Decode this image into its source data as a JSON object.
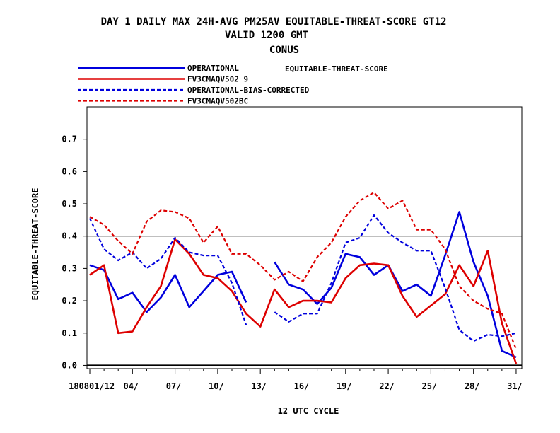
{
  "chart_data": {
    "type": "line",
    "title_lines": [
      "DAY 1 DAILY MAX   24H-AVG PM25AV EQUITABLE-THREAT-SCORE GT12",
      "VALID 1200 GMT",
      "CONUS"
    ],
    "legend_header": "EQUITABLE-THREAT-SCORE",
    "xlabel": "12 UTC CYCLE",
    "ylabel": "EQUITABLE-THREAT-SCORE",
    "x_start_label": "1808",
    "x_tick_labels": [
      {
        "day": 1,
        "label": "01/12"
      },
      {
        "day": 4,
        "label": "04/"
      },
      {
        "day": 7,
        "label": "07/"
      },
      {
        "day": 10,
        "label": "10/"
      },
      {
        "day": 13,
        "label": "13/"
      },
      {
        "day": 16,
        "label": "16/"
      },
      {
        "day": 19,
        "label": "19/"
      },
      {
        "day": 22,
        "label": "22/"
      },
      {
        "day": 25,
        "label": "25/"
      },
      {
        "day": 28,
        "label": "28/"
      },
      {
        "day": 31,
        "label": "31/"
      }
    ],
    "xlim": [
      0.8,
      31.4
    ],
    "ylim": [
      -0.01,
      0.8
    ],
    "y_ticks": [
      0.0,
      0.1,
      0.2,
      0.3,
      0.4,
      0.5,
      0.6,
      0.7
    ],
    "y_tick_labels": [
      "0.0",
      "0.1",
      "0.2",
      "0.3",
      "0.4",
      "0.5",
      "0.6",
      "0.7"
    ],
    "reference_lines": [
      0.0,
      0.4
    ],
    "grid": false,
    "legend_position": "top-left",
    "series": [
      {
        "name": "OPERATIONAL",
        "color": "#0000dd",
        "dash": "solid",
        "x": [
          1,
          2,
          3,
          4,
          5,
          6,
          7,
          8,
          9,
          10,
          11,
          12,
          14,
          15,
          16,
          17,
          18,
          19,
          20,
          21,
          22,
          23,
          24,
          25,
          26,
          27,
          28,
          29,
          30,
          31
        ],
        "values": [
          0.31,
          0.295,
          0.205,
          0.225,
          0.165,
          0.21,
          0.28,
          0.18,
          0.23,
          0.28,
          0.29,
          0.195,
          0.32,
          0.25,
          0.235,
          0.19,
          0.24,
          0.345,
          0.335,
          0.28,
          0.31,
          0.23,
          0.25,
          0.215,
          0.34,
          0.475,
          0.32,
          0.215,
          0.045,
          0.025
        ]
      },
      {
        "name": "FV3CMAQV502_9",
        "color": "#dd0000",
        "dash": "solid",
        "x": [
          1,
          2,
          3,
          4,
          5,
          6,
          7,
          8,
          9,
          10,
          11,
          12,
          13,
          14,
          15,
          16,
          17,
          18,
          19,
          20,
          21,
          22,
          23,
          24,
          25,
          26,
          27,
          28,
          29,
          30,
          31
        ],
        "values": [
          0.28,
          0.31,
          0.1,
          0.105,
          0.18,
          0.245,
          0.39,
          0.345,
          0.28,
          0.27,
          0.23,
          0.16,
          0.12,
          0.235,
          0.18,
          0.2,
          0.2,
          0.195,
          0.27,
          0.31,
          0.315,
          0.31,
          0.215,
          0.15,
          0.185,
          0.22,
          0.31,
          0.245,
          0.355,
          0.13,
          0.005
        ]
      },
      {
        "name": "OPERATIONAL-BIAS-CORRECTED",
        "color": "#0000dd",
        "dash": "dashed",
        "x": [
          1,
          2,
          3,
          4,
          5,
          6,
          7,
          8,
          9,
          10,
          11,
          12,
          14,
          15,
          16,
          17,
          18,
          19,
          20,
          21,
          22,
          23,
          24,
          25,
          26,
          27,
          28,
          29,
          30,
          31
        ],
        "values": [
          0.455,
          0.36,
          0.325,
          0.35,
          0.3,
          0.33,
          0.395,
          0.35,
          0.34,
          0.34,
          0.255,
          0.125,
          0.165,
          0.135,
          0.16,
          0.16,
          0.255,
          0.38,
          0.395,
          0.465,
          0.41,
          0.38,
          0.355,
          0.355,
          0.24,
          0.11,
          0.075,
          0.095,
          0.09,
          0.1
        ]
      },
      {
        "name": "FV3CMAQV502BC",
        "color": "#dd0000",
        "dash": "dashed",
        "x": [
          1,
          2,
          3,
          4,
          5,
          6,
          7,
          8,
          9,
          10,
          11,
          12,
          13,
          14,
          15,
          16,
          17,
          18,
          19,
          20,
          21,
          22,
          23,
          24,
          25,
          26,
          27,
          28,
          29,
          30,
          31
        ],
        "values": [
          0.46,
          0.435,
          0.385,
          0.345,
          0.445,
          0.48,
          0.475,
          0.455,
          0.38,
          0.43,
          0.345,
          0.345,
          0.31,
          0.265,
          0.29,
          0.26,
          0.335,
          0.38,
          0.46,
          0.51,
          0.535,
          0.485,
          0.51,
          0.42,
          0.42,
          0.36,
          0.245,
          0.2,
          0.175,
          0.16,
          0.05
        ]
      }
    ]
  }
}
